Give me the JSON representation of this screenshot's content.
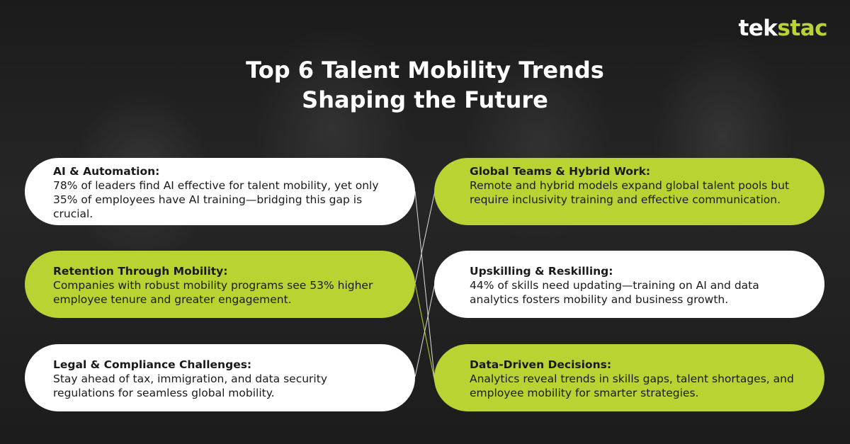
{
  "logo": {
    "primary": "tek",
    "accent": "stac"
  },
  "title_lines": [
    "Top 6 Talent Mobility Trends",
    "Shaping the Future"
  ],
  "cards": [
    {
      "heading": "AI & Automation:",
      "body": "78% of leaders find AI effective for talent mobility, yet only 35% of employees have AI training—bridging this gap is crucial."
    },
    {
      "heading": "Global Teams & Hybrid Work:",
      "body": "Remote and hybrid models expand global talent pools but require inclusivity training and effective communication."
    },
    {
      "heading": "Retention Through Mobility:",
      "body": "Companies with robust mobility programs see 53% higher employee tenure and greater engagement."
    },
    {
      "heading": "Upskilling & Reskilling:",
      "body": "44% of skills need updating—training on AI and data analytics fosters mobility and business growth."
    },
    {
      "heading": "Legal & Compliance Challenges:",
      "body": "Stay ahead of tax, immigration, and data security regulations for seamless global mobility."
    },
    {
      "heading": "Data-Driven Decisions:",
      "body": "Analytics reveal trends in skills gaps, talent shortages, and employee mobility for smarter strategies."
    }
  ]
}
